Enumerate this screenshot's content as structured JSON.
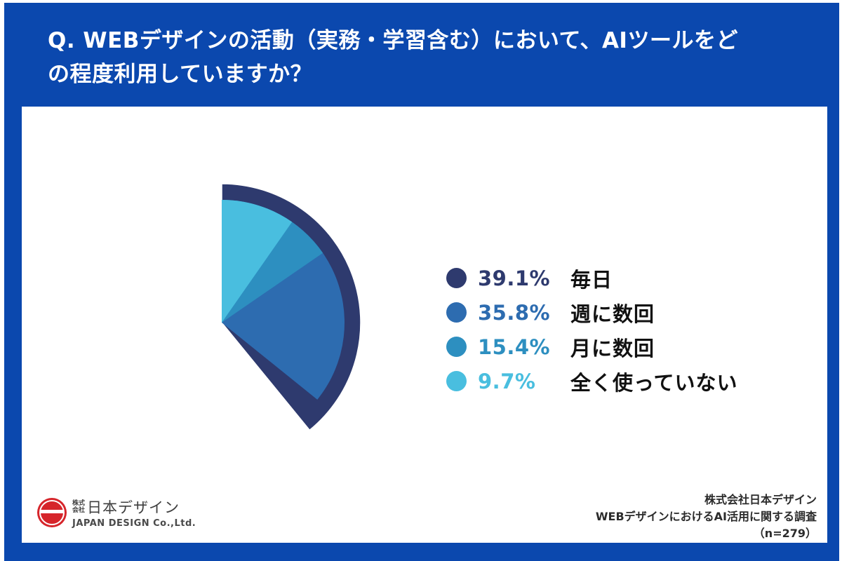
{
  "header": {
    "title_line1": "Q. WEBデザインの活動（実務・学習含む）において、AIツールをど",
    "title_line2": "の程度利用していますか？"
  },
  "chart_data": {
    "type": "pie",
    "title": "Q. WEBデザインの活動（実務・学習含む）において、AIツールをどの程度利用していますか？",
    "categories": [
      "毎日",
      "週に数回",
      "月に数回",
      "全く使っていない"
    ],
    "values": [
      39.1,
      35.8,
      15.4,
      9.7
    ],
    "unit": "%",
    "colors": [
      "#2e3a6e",
      "#2d6cb0",
      "#2d8fc0",
      "#49bedf"
    ],
    "start_angle_deg": 0,
    "direction": "clockwise",
    "emphasized_index": 0,
    "legend_position": "right",
    "sample_size": "n=279"
  },
  "legend": {
    "items": [
      {
        "percent": "39.1%",
        "label": "毎日",
        "color": "#2e3a6e"
      },
      {
        "percent": "35.8%",
        "label": "週に数回",
        "color": "#2d6cb0"
      },
      {
        "percent": "15.4%",
        "label": "月に数回",
        "color": "#2d8fc0"
      },
      {
        "percent": "9.7%",
        "label": "全く使っていない",
        "color": "#49bedf"
      }
    ]
  },
  "footer": {
    "logo": {
      "prefix_top": "株式",
      "prefix_bottom": "会社",
      "jp_name": "日本デザイン",
      "en_name": "JAPAN DESIGN Co.,Ltd.",
      "brand_red": "#d6252b"
    },
    "source": {
      "line1": "株式会社日本デザイン",
      "line2": "WEBデザインにおけるAI活用に関する調査",
      "line3": "（n=279）"
    }
  },
  "theme": {
    "frame_blue": "#0b48ae",
    "panel_white": "#ffffff"
  }
}
